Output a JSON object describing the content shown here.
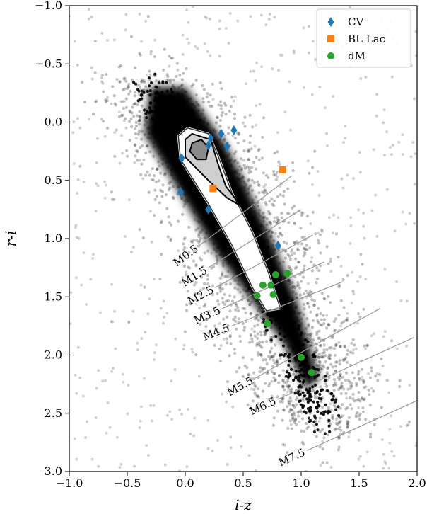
{
  "chart_data": {
    "type": "scatter",
    "title": "",
    "xlabel": "i-z",
    "ylabel": "r-i",
    "xlim": [
      -1.0,
      2.0
    ],
    "ylim": [
      3.0,
      -1.0
    ],
    "y_inverted": true,
    "xticks": [
      -1.0,
      -0.5,
      0.0,
      0.5,
      1.0,
      1.5,
      2.0
    ],
    "yticks": [
      -1.0,
      -0.5,
      0.0,
      0.5,
      1.0,
      1.5,
      2.0,
      2.5,
      3.0
    ],
    "xtick_labels": [
      "−1.0",
      "−0.5",
      "0.0",
      "0.5",
      "1.0",
      "1.5",
      "2.0"
    ],
    "ytick_labels": [
      "−1.0",
      "−0.5",
      "0.0",
      "0.5",
      "1.0",
      "1.5",
      "2.0",
      "2.5",
      "3.0"
    ],
    "grid": false,
    "legend_position": "top-right",
    "background_density": {
      "description_none": "",
      "spine": [
        [
          -0.3,
          -0.25
        ],
        [
          0.05,
          0.15
        ],
        [
          0.4,
          0.75
        ],
        [
          0.7,
          1.4
        ],
        [
          0.95,
          2.0
        ],
        [
          1.2,
          2.5
        ]
      ],
      "color": "#000000"
    },
    "series": [
      {
        "name": "CV",
        "marker": "diamond",
        "color": "#1f77b4",
        "x": [
          0.2,
          0.22,
          0.31,
          0.36,
          0.42,
          -0.03,
          -0.04,
          0.2,
          0.8
        ],
        "y": [
          0.2,
          0.14,
          0.1,
          0.21,
          0.07,
          0.31,
          0.6,
          0.75,
          1.06
        ]
      },
      {
        "name": "BL Lac",
        "marker": "square",
        "color": "#ff7f0e",
        "x": [
          0.24,
          0.84
        ],
        "y": [
          0.57,
          0.41
        ]
      },
      {
        "name": "dM",
        "marker": "circle",
        "color": "#2ca02c",
        "x": [
          0.67,
          0.74,
          0.78,
          0.88,
          0.62,
          0.76,
          0.71,
          1.0,
          1.09
        ],
        "y": [
          1.4,
          1.4,
          1.31,
          1.3,
          1.49,
          1.48,
          1.73,
          2.02,
          2.15
        ]
      }
    ],
    "spectral_sequence": [
      {
        "label": "M0.5",
        "x": 0.12,
        "y": 1.06,
        "x2": 0.92,
        "y2": 0.46
      },
      {
        "label": "M1.5",
        "x": 0.2,
        "y": 1.25,
        "x2": 1.0,
        "y2": 0.75
      },
      {
        "label": "M2.5",
        "x": 0.26,
        "y": 1.42,
        "x2": 1.1,
        "y2": 0.97
      },
      {
        "label": "M3.5",
        "x": 0.32,
        "y": 1.6,
        "x2": 1.2,
        "y2": 1.2
      },
      {
        "label": "M4.5",
        "x": 0.4,
        "y": 1.75,
        "x2": 1.36,
        "y2": 1.37
      },
      {
        "label": "M5.5",
        "x": 0.6,
        "y": 2.2,
        "x2": 1.68,
        "y2": 1.6
      },
      {
        "label": "M6.5",
        "x": 0.8,
        "y": 2.38,
        "x2": 1.97,
        "y2": 1.85
      },
      {
        "label": "M7.5",
        "x": 1.05,
        "y": 2.82,
        "x2": 2.2,
        "y2": 2.3
      }
    ]
  }
}
